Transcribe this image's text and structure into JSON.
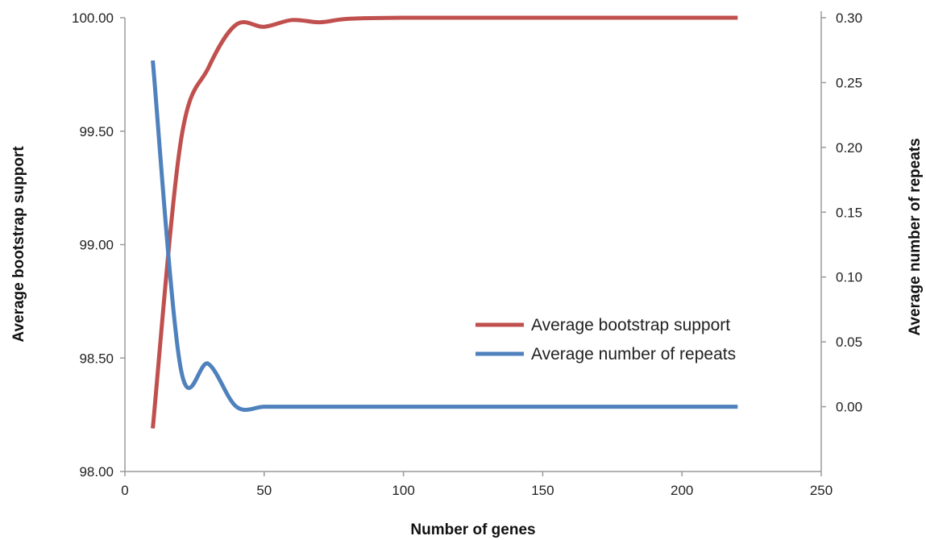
{
  "chart_data": {
    "type": "line",
    "xlabel": "Number of genes",
    "ylabel_left": "Average bootstrap support",
    "ylabel_right": "Average number of repeats",
    "xlim": [
      0,
      250
    ],
    "xticks": [
      0,
      50,
      100,
      150,
      200,
      250
    ],
    "ylim_left": [
      98.0,
      100.0
    ],
    "yticks_left": [
      "98.00",
      "98.50",
      "99.00",
      "99.50",
      "100.00"
    ],
    "ylim_right": [
      -0.05,
      0.3
    ],
    "yticks_right": [
      "0.00",
      "0.05",
      "0.10",
      "0.15",
      "0.20",
      "0.25",
      "0.30"
    ],
    "legend_position": "center-right",
    "grid": false,
    "series": [
      {
        "name": "Average bootstrap support",
        "axis": "left",
        "color": "#C0504D",
        "x": [
          10,
          20,
          30,
          40,
          50,
          60,
          70,
          80,
          100,
          150,
          200,
          220
        ],
        "y": [
          98.19,
          99.45,
          99.78,
          99.97,
          99.96,
          99.99,
          99.98,
          99.995,
          100.0,
          100.0,
          100.0,
          100.0
        ]
      },
      {
        "name": "Average number of repeats",
        "axis": "right",
        "color": "#4F81BD",
        "x": [
          10,
          20,
          30,
          40,
          50,
          60,
          80,
          100,
          150,
          200,
          220
        ],
        "y": [
          0.267,
          0.03,
          0.033,
          0.0,
          0.0,
          0.0,
          0.0,
          0.0,
          0.0,
          0.0,
          0.0
        ]
      }
    ]
  }
}
